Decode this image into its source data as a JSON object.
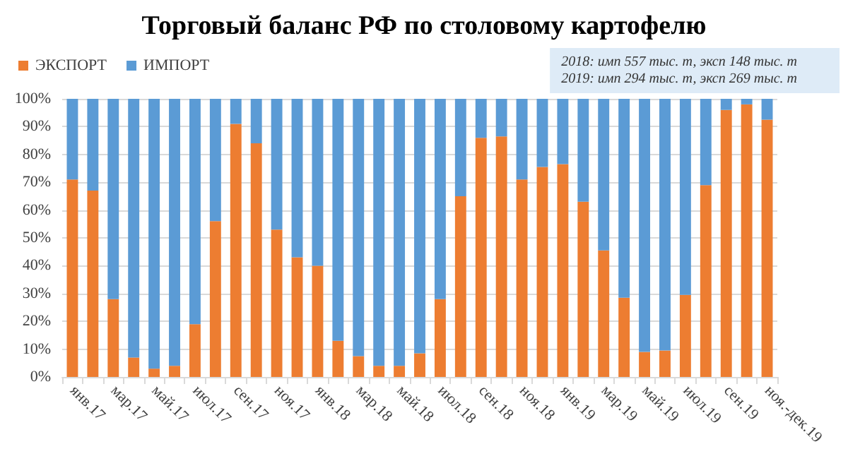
{
  "chart_data": {
    "type": "bar",
    "title": "Торговый баланс РФ по столовому картофелю",
    "annotations": [
      "2018: имп 557 тыс. т, эксп 148 тыс. т",
      "2019: имп 294 тыс. т, эксп 269 тыс. т"
    ],
    "categories": [
      "янв.17",
      null,
      "мар.17",
      null,
      "май.17",
      null,
      "июл.17",
      null,
      "сен.17",
      null,
      "ноя.17",
      null,
      "янв.18",
      null,
      "мар.18",
      null,
      "май.18",
      null,
      "июл.18",
      null,
      "сен.18",
      null,
      "ноя.18",
      null,
      "янв.19",
      null,
      "мар.19",
      null,
      "май.19",
      null,
      "июл.19",
      null,
      "сен.19",
      null,
      "ноя.-дек.19"
    ],
    "stacked": true,
    "series": [
      {
        "name": "ЭКСПОРТ",
        "color": "#ed7d31",
        "values": [
          71,
          67,
          28,
          7,
          3,
          4,
          19,
          56,
          91,
          84,
          53,
          43,
          40,
          13,
          7.5,
          4,
          4,
          8.5,
          28,
          65,
          86,
          86.5,
          71,
          75.5,
          76.5,
          63,
          45.5,
          28.5,
          9,
          9.5,
          29.5,
          69,
          96,
          98,
          92.5
        ]
      },
      {
        "name": "ИМПОРТ",
        "color": "#5b9bd5",
        "values": [
          29,
          33,
          72,
          93,
          97,
          96,
          81,
          44,
          9,
          16,
          47,
          57,
          60,
          87,
          92.5,
          96,
          96,
          91.5,
          72,
          35,
          14,
          13.5,
          29,
          24.5,
          23.5,
          37,
          54.5,
          71.5,
          91,
          90.5,
          70.5,
          31,
          4,
          2,
          7.5
        ]
      }
    ],
    "ylim": [
      0,
      100
    ],
    "yticks": [
      {
        "value": 0,
        "label": "0%"
      },
      {
        "value": 10,
        "label": "10%"
      },
      {
        "value": 20,
        "label": "20%"
      },
      {
        "value": 30,
        "label": "30%"
      },
      {
        "value": 40,
        "label": "40%"
      },
      {
        "value": 50,
        "label": "50%"
      },
      {
        "value": 60,
        "label": "60%"
      },
      {
        "value": 70,
        "label": "70%"
      },
      {
        "value": 80,
        "label": "80%"
      },
      {
        "value": 90,
        "label": "90%"
      },
      {
        "value": 100,
        "label": "100%"
      }
    ],
    "grid": "y",
    "legend": "top left"
  }
}
